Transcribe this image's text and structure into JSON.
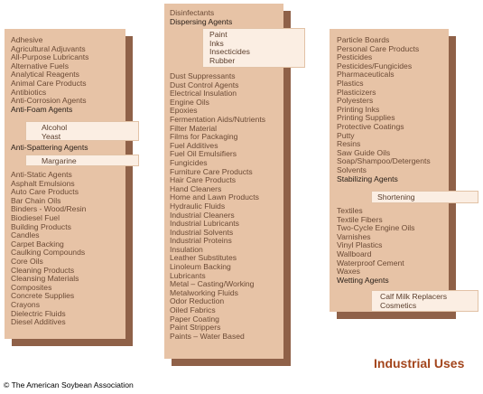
{
  "columns": [
    {
      "groups": [
        {
          "items": [
            "Adhesive",
            "Agricultural Adjuvants",
            "All-Purpose Lubricants",
            "Alternative Fuels",
            "Analytical Reagents",
            "Animal Care Products",
            "Antibiotics",
            "Anti-Corrosion Agents"
          ]
        },
        {
          "items": [
            "Anti-Foam Agents"
          ],
          "heading": true
        },
        {
          "items": [
            "Anti-Spattering Agents"
          ],
          "heading": true
        },
        {
          "items": [
            "Anti-Static Agents",
            "Asphalt Emulsions",
            "Auto Care Products",
            "Bar Chain Oils",
            "Binders - Wood/Resin",
            "Biodiesel Fuel",
            "Building Products",
            "Candles",
            "Carpet Backing",
            "Caulking Compounds",
            "Core Oils",
            "Cleaning Products",
            "Cleansing Materials",
            "Composites",
            "Concrete Supplies",
            "Crayons",
            "Dielectric Fluids",
            "Diesel Additives"
          ]
        }
      ],
      "sub_lists": [
        [
          "Alcohol",
          "Yeast"
        ],
        [
          "Margarine"
        ]
      ]
    },
    {
      "groups": [
        {
          "items": [
            "Disinfectants"
          ]
        },
        {
          "items": [
            "Dispersing Agents"
          ],
          "heading": true
        },
        {
          "items": [
            "Dust Suppressants",
            "Dust Control Agents",
            "Electrical Insulation",
            "Engine Oils",
            "Epoxies",
            "Fermentation Aids/Nutrients",
            "Filter Material",
            "Films for Packaging",
            "Fuel Additives",
            "Fuel Oil Emulsifiers",
            "Fungicides",
            "Furniture Care Products",
            "Hair Care Products",
            "Hand Cleaners",
            "Home and Lawn Products",
            "Hydraulic Fluids",
            "Industrial Cleaners",
            "Industrial Lubricants",
            "Industrial Solvents",
            "Industrial Proteins",
            "Insulation",
            "Leather Substitutes",
            "Linoleum Backing",
            "Lubricants",
            "Metal – Casting/Working",
            "Metalworking Fluids",
            "Odor Reduction",
            "Oiled Fabrics",
            "Paper Coating",
            "Paint Strippers",
            "Paints – Water Based"
          ]
        }
      ],
      "sub_lists": [
        [
          "Paint",
          "Inks",
          "Insecticides",
          "Rubber"
        ]
      ]
    },
    {
      "groups": [
        {
          "items": [
            "Particle Boards",
            "Personal Care Products",
            "Pesticides",
            "Pesticides/Fungicides",
            "Pharmaceuticals",
            "Plastics",
            "Plasticizers",
            "Polyesters",
            "Printing Inks",
            "Printing Supplies",
            "Protective Coatings",
            "Putty",
            "Resins",
            "Saw Guide Oils",
            "Soap/Shampoo/Detergents",
            "Solvents"
          ]
        },
        {
          "items": [
            "Stabilizing Agents"
          ],
          "heading": true
        },
        {
          "items": [
            "Textiles",
            "Textile Fibers",
            "Two-Cycle Engine Oils",
            "Varnishes",
            "Vinyl Plastics",
            "Wallboard",
            "Waterproof Cement",
            "Waxes"
          ]
        },
        {
          "items": [
            "Wetting Agents"
          ],
          "heading": true
        }
      ],
      "sub_lists": [
        [
          "Shortening"
        ],
        [
          "Calf Milk Replacers",
          "Cosmetics"
        ]
      ]
    }
  ],
  "title": "Industrial Uses",
  "copyright": "© The American Soybean Association",
  "colors": {
    "column": "#e7c3a6",
    "shadow": "#8f6148",
    "sub_box": "#fbeee3",
    "title": "#a3451c"
  }
}
